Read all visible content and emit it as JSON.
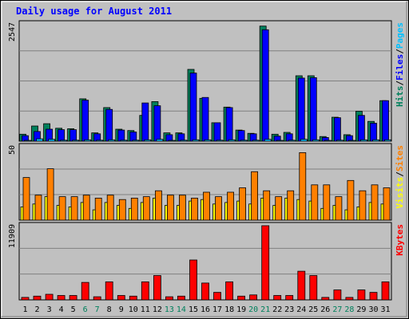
{
  "chart_data": {
    "type": "bar",
    "title": "Daily usage for August 2011",
    "colors": {
      "title": "#0000ff",
      "background": "#c0c0c0",
      "plot_bg": "#c0c0c0",
      "grid": "#808080",
      "hits": "#00805c",
      "files": "#0000ff",
      "pages": "#00c0ff",
      "visits": "#ffff00",
      "sites": "#ff8000",
      "kbytes": "#ff0000",
      "weekend_label": "#00805c",
      "weekday_label": "#000000"
    },
    "days": [
      "1",
      "2",
      "3",
      "4",
      "5",
      "6",
      "7",
      "8",
      "9",
      "10",
      "11",
      "12",
      "13",
      "14",
      "15",
      "16",
      "17",
      "18",
      "19",
      "20",
      "21",
      "22",
      "23",
      "24",
      "25",
      "26",
      "27",
      "28",
      "29",
      "30",
      "31"
    ],
    "weekend_days": [
      "6",
      "7",
      "13",
      "14",
      "20",
      "21",
      "27",
      "28"
    ],
    "panels": [
      {
        "name": "hits-files-pages",
        "ymax": 2547,
        "ymax_label": "2547",
        "legend": [
          {
            "text": "Hits",
            "color": "#00805c"
          },
          {
            "text": "/",
            "color": "#000000"
          },
          {
            "text": "Files",
            "color": "#0000ff"
          },
          {
            "text": "/",
            "color": "#000000"
          },
          {
            "text": "Pages",
            "color": "#00c0ff"
          }
        ],
        "series": [
          {
            "name": "Hits",
            "color": "#00805c",
            "values": [
              150,
              330,
              380,
              280,
              270,
              920,
              180,
              730,
              260,
              230,
              560,
              860,
              180,
              180,
              1560,
              930,
              400,
              740,
              240,
              170,
              2500,
              150,
              190,
              1420,
              1420,
              100,
              520,
              140,
              650,
              430,
              880
            ]
          },
          {
            "name": "Files",
            "color": "#0000ff",
            "values": [
              120,
              210,
              260,
              250,
              250,
              890,
              160,
              690,
              240,
              200,
              830,
              770,
              140,
              160,
              1480,
              950,
              400,
              730,
              230,
              160,
              2420,
              110,
              160,
              1370,
              1380,
              80,
              510,
              120,
              560,
              390,
              880
            ]
          },
          {
            "name": "Pages",
            "color": "#00c0ff",
            "values": [
              10,
              50,
              40,
              20,
              20,
              30,
              20,
              30,
              20,
              20,
              30,
              40,
              10,
              20,
              30,
              30,
              20,
              30,
              20,
              20,
              40,
              10,
              20,
              40,
              30,
              10,
              20,
              10,
              30,
              30,
              30
            ]
          }
        ]
      },
      {
        "name": "visits-sites",
        "ymax": 50,
        "ymax_label": "50",
        "legend": [
          {
            "text": "Visits",
            "color": "#ffff00"
          },
          {
            "text": "/",
            "color": "#000000"
          },
          {
            "text": "Sites",
            "color": "#ff8000"
          }
        ],
        "series": [
          {
            "name": "Visits",
            "color": "#ffff00",
            "values": [
              9,
              11,
              16,
              10,
              9,
              12,
              7,
              12,
              10,
              8,
              12,
              15,
              10,
              10,
              13,
              14,
              11,
              12,
              13,
              11,
              15,
              10,
              15,
              14,
              13,
              8,
              10,
              7,
              9,
              12,
              11
            ]
          },
          {
            "name": "Sites",
            "color": "#ff8000",
            "values": [
              29,
              17,
              35,
              16,
              16,
              17,
              15,
              17,
              14,
              15,
              16,
              20,
              17,
              17,
              15,
              19,
              16,
              19,
              22,
              33,
              20,
              16,
              20,
              46,
              24,
              24,
              16,
              27,
              20,
              24,
              22
            ]
          }
        ]
      },
      {
        "name": "kbytes",
        "ymax": 11909,
        "ymax_label": "11909",
        "legend": [
          {
            "text": "KBytes",
            "color": "#ff0000"
          }
        ],
        "series": [
          {
            "name": "KBytes",
            "color": "#ff0000",
            "values": [
              400,
              600,
              900,
              700,
              700,
              2800,
              500,
              2900,
              700,
              600,
              2900,
              3900,
              500,
              600,
              6400,
              2700,
              1200,
              2900,
              600,
              800,
              11909,
              700,
              700,
              4600,
              3900,
              400,
              1600,
              400,
              1600,
              1200,
              2900
            ]
          }
        ]
      }
    ]
  }
}
